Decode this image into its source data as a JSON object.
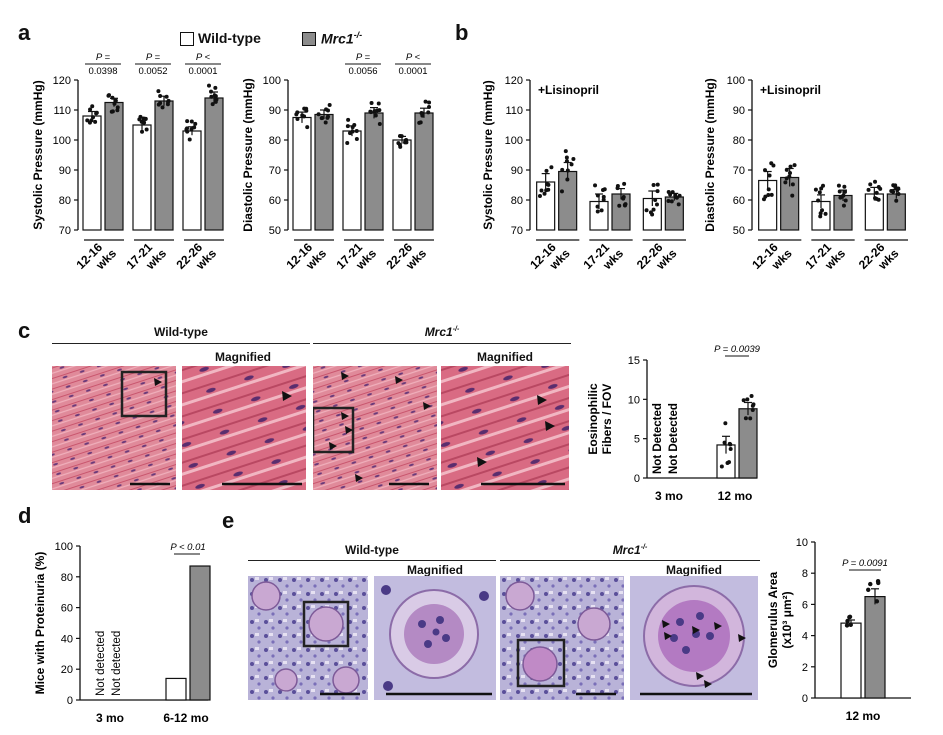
{
  "panels": {
    "a": "a",
    "b": "b",
    "c": "c",
    "d": "d",
    "e": "e"
  },
  "legend": {
    "wildtype": "Wild-type",
    "mrc1": "Mrc1",
    "mrc1_sup": "-/-"
  },
  "colors": {
    "wildtype_fill": "#ffffff",
    "mrc1_fill": "#8c8c8c",
    "he_pink": "#d9607a",
    "pas_purple": "#9a8fc2"
  },
  "section_c": {
    "wildtype_header": "Wild-type",
    "mrc1_header": "Mrc1",
    "mrc1_sup": "-/-",
    "magnified_1": "Magnified",
    "magnified_2": "Magnified"
  },
  "section_e": {
    "wildtype_header": "Wild-type",
    "mrc1_header": "Mrc1",
    "mrc1_sup": "-/-",
    "magnified_1": "Magnified",
    "magnified_2": "Magnified"
  },
  "chart_data": [
    {
      "id": "a-systolic",
      "type": "bar",
      "ylabel": "Systolic Pressure (mmHg)",
      "ylim": [
        70,
        120
      ],
      "yticks": [
        70,
        80,
        90,
        100,
        110,
        120
      ],
      "categories": [
        [
          "12-16",
          "wks"
        ],
        [
          "17-21",
          "wks"
        ],
        [
          "22-26",
          "wks"
        ]
      ],
      "series": [
        {
          "name": "Wild-type",
          "values": [
            108,
            105,
            103
          ],
          "sem": [
            1.5,
            1.6,
            1.4
          ]
        },
        {
          "name": "Mrc1-/-",
          "values": [
            112.5,
            113,
            114
          ],
          "sem": [
            1.4,
            1.6,
            2.0
          ]
        }
      ],
      "pvalues": [
        [
          "P =",
          "0.0398"
        ],
        [
          "P =",
          "0.0052"
        ],
        [
          "P <",
          "0.0001"
        ]
      ]
    },
    {
      "id": "a-diastolic",
      "type": "bar",
      "ylabel": "Diastolic Pressure (mmHg)",
      "ylim": [
        50,
        100
      ],
      "yticks": [
        50,
        60,
        70,
        80,
        90,
        100
      ],
      "categories": [
        [
          "12-16",
          "wks"
        ],
        [
          "17-21",
          "wks"
        ],
        [
          "22-26",
          "wks"
        ]
      ],
      "series": [
        {
          "name": "Wild-type",
          "values": [
            87.5,
            83,
            80
          ],
          "sem": [
            1.8,
            1.7,
            1.2
          ]
        },
        {
          "name": "Mrc1-/-",
          "values": [
            88.5,
            89,
            89
          ],
          "sem": [
            1.5,
            1.8,
            1.6
          ]
        }
      ],
      "pvalues": [
        null,
        [
          "P =",
          "0.0056"
        ],
        [
          "P <",
          "0.0001"
        ]
      ]
    },
    {
      "id": "b-systolic",
      "type": "bar",
      "ylabel": "Systolic Pressure (mmHg)",
      "annotation": "+Lisinopril",
      "ylim": [
        70,
        120
      ],
      "yticks": [
        70,
        80,
        90,
        100,
        110,
        120
      ],
      "categories": [
        [
          "12-16",
          "wks"
        ],
        [
          "17-21",
          "wks"
        ],
        [
          "22-26",
          "wks"
        ]
      ],
      "series": [
        {
          "name": "Wild-type",
          "values": [
            86,
            79.5,
            80.5
          ],
          "sem": [
            2.8,
            2.5,
            2.5
          ]
        },
        {
          "name": "Mrc1-/-",
          "values": [
            89.5,
            82,
            81
          ],
          "sem": [
            3.0,
            1.8,
            1.2
          ]
        }
      ]
    },
    {
      "id": "b-diastolic",
      "type": "bar",
      "ylabel": "Diastolic Pressure (mmHg)",
      "annotation": "+Lisinopril",
      "ylim": [
        50,
        100
      ],
      "yticks": [
        50,
        60,
        70,
        80,
        90,
        100
      ],
      "categories": [
        [
          "12-16",
          "wks"
        ],
        [
          "17-21",
          "wks"
        ],
        [
          "22-26",
          "wks"
        ]
      ],
      "series": [
        {
          "name": "Wild-type",
          "values": [
            66.5,
            59.5,
            62
          ],
          "sem": [
            3.0,
            2.2,
            2.2
          ]
        },
        {
          "name": "Mrc1-/-",
          "values": [
            67.5,
            61.5,
            62
          ],
          "sem": [
            3.0,
            1.8,
            1.5
          ]
        }
      ]
    },
    {
      "id": "c-eosinophilic",
      "type": "bar",
      "ylabel": [
        "Eosinophilic",
        "Fibers / FOV"
      ],
      "ylim": [
        0,
        15
      ],
      "yticks": [
        0,
        5,
        10,
        15
      ],
      "categories": [
        "3 mo",
        "12 mo"
      ],
      "series": [
        {
          "name": "Wild-type",
          "values": [
            null,
            4.2
          ],
          "sem": [
            null,
            1.1
          ]
        },
        {
          "name": "Mrc1-/-",
          "values": [
            null,
            8.8
          ],
          "sem": [
            null,
            0.8
          ]
        }
      ],
      "not_detected": [
        "Not Detected",
        "Not Detected"
      ],
      "pvalue": "P = 0.0039"
    },
    {
      "id": "d-proteinuria",
      "type": "bar",
      "ylabel": "Mice with Proteinuria (%)",
      "ylim": [
        0,
        100
      ],
      "yticks": [
        0,
        20,
        40,
        60,
        80,
        100
      ],
      "categories": [
        "3 mo",
        "6-12 mo"
      ],
      "series": [
        {
          "name": "Wild-type",
          "values": [
            null,
            14
          ]
        },
        {
          "name": "Mrc1-/-",
          "values": [
            null,
            87
          ]
        }
      ],
      "not_detected": [
        "Not detected",
        "Not detected"
      ],
      "pvalue": "P < 0.01"
    },
    {
      "id": "e-glomerulus",
      "type": "bar",
      "ylabel": [
        "Glomerulus Area",
        "(x10³ μm²)"
      ],
      "ylim": [
        0,
        10
      ],
      "yticks": [
        0,
        2,
        4,
        6,
        8,
        10
      ],
      "categories": [
        "12 mo"
      ],
      "series": [
        {
          "name": "Wild-type",
          "values": [
            4.8
          ],
          "sem": [
            0.2
          ]
        },
        {
          "name": "Mrc1-/-",
          "values": [
            6.5
          ],
          "sem": [
            0.5
          ]
        }
      ],
      "pvalue": "P = 0.0091"
    }
  ]
}
